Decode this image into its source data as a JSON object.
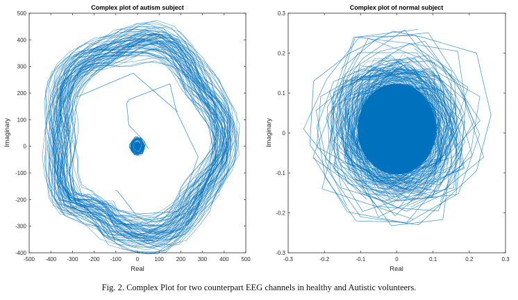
{
  "figure": {
    "caption": "Fig. 2. Complex Plot for two counterpart EEG channels in healthy and Autistic volunteers."
  },
  "chart_data": [
    {
      "type": "line",
      "title": "Complex plot of autism subject",
      "xlabel": "Real",
      "ylabel": "Imaginary",
      "xlim": [
        -500,
        500
      ],
      "ylim": [
        -400,
        500
      ],
      "xticks": [
        -500,
        -400,
        -300,
        -200,
        -100,
        0,
        100,
        200,
        300,
        400,
        500
      ],
      "yticks": [
        -400,
        -300,
        -200,
        -100,
        0,
        100,
        200,
        300,
        400,
        500
      ],
      "xtick_labels": [
        "-500",
        "-400",
        "-300",
        "-200",
        "-100",
        "0",
        "100",
        "200",
        "300",
        "400",
        "500"
      ],
      "ytick_labels": [
        "-400",
        "-300",
        "-200",
        "-100",
        "0",
        "100",
        "200",
        "300",
        "400",
        "500"
      ],
      "grid": false,
      "line_color": "#0072BD",
      "description": "Dense elliptical ring trajectory centered near (0, 30) with radius ~330-420, plus a small dense cluster near origin and a few transient straight segments",
      "ring": {
        "center": [
          0,
          30
        ],
        "radius_inner": 320,
        "radius_outer": 420
      },
      "core_cluster": {
        "center": [
          0,
          0
        ],
        "radius": 30
      },
      "transient_path": [
        [
          50,
          -10
        ],
        [
          30,
          20
        ],
        [
          -40,
          80
        ],
        [
          -50,
          160
        ],
        [
          -40,
          175
        ],
        [
          150,
          235
        ],
        [
          180,
          130
        ],
        [
          280,
          -40
        ],
        [
          190,
          -245
        ],
        [
          -10,
          -255
        ],
        [
          -90,
          -170
        ],
        [
          -100,
          -165
        ]
      ],
      "transient_path_2": [
        [
          -280,
          185
        ],
        [
          -20,
          275
        ],
        [
          185,
          130
        ]
      ]
    },
    {
      "type": "line",
      "title": "Complex plot of normal subject",
      "xlabel": "Real",
      "ylabel": "Imaginary",
      "xlim": [
        -0.3,
        0.3
      ],
      "ylim": [
        -0.3,
        0.3
      ],
      "xticks": [
        -0.3,
        -0.2,
        -0.1,
        0,
        0.1,
        0.2,
        0.3
      ],
      "yticks": [
        -0.3,
        -0.2,
        -0.1,
        0,
        0.1,
        0.2,
        0.3
      ],
      "xtick_labels": [
        "-0.3",
        "-0.2",
        "-0.1",
        "0",
        "0.1",
        "0.2",
        "0.3"
      ],
      "ytick_labels": [
        "-0.3",
        "-0.2",
        "-0.1",
        "0",
        "0.1",
        "0.2",
        "0.3"
      ],
      "grid": false,
      "line_color": "#0072BD",
      "description": "Dense filled cloud centered near (0, 0.02) with radius ~0.12, surrounded by sparse irregular loops reaching ~0.26",
      "core": {
        "center": [
          0,
          0.01
        ],
        "radius": 0.12
      },
      "outer_extent": {
        "xmin": -0.24,
        "xmax": 0.26,
        "ymin": -0.235,
        "ymax": 0.255
      },
      "outer_peaks": [
        [
          -0.01,
          0.255
        ],
        [
          0.07,
          0.24
        ],
        [
          0.22,
          0.2
        ],
        [
          0.26,
          0.045
        ],
        [
          0.22,
          -0.095
        ],
        [
          0.06,
          -0.23
        ],
        [
          -0.1,
          -0.21
        ],
        [
          -0.24,
          -0.03
        ],
        [
          -0.23,
          0.13
        ],
        [
          -0.13,
          0.2
        ]
      ]
    }
  ]
}
